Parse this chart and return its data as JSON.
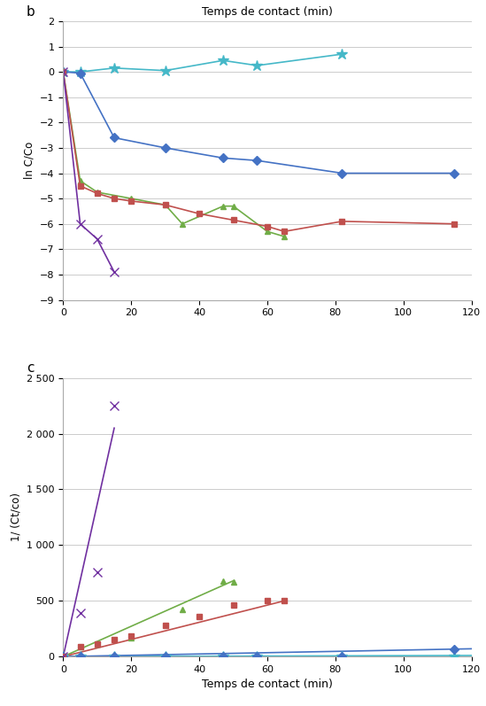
{
  "panel_b": {
    "title": "Temps de contact (min)",
    "ylabel": "ln C/Co",
    "label": "b",
    "xlim": [
      0,
      120
    ],
    "ylim": [
      -9,
      2
    ],
    "yticks": [
      -9,
      -8,
      -7,
      -6,
      -5,
      -4,
      -3,
      -2,
      -1,
      0,
      1,
      2
    ],
    "xticks": [
      0,
      20,
      40,
      60,
      80,
      100,
      120
    ],
    "series": [
      {
        "x": [
          0,
          5,
          15,
          30,
          47,
          57,
          82
        ],
        "y": [
          0,
          0.0,
          0.15,
          0.05,
          0.45,
          0.25,
          0.7
        ],
        "color": "#45B8C8",
        "marker": "*",
        "markersize": 9,
        "linewidth": 1.2,
        "linestyle": "-"
      },
      {
        "x": [
          0,
          5,
          15,
          30,
          47,
          57,
          82,
          115
        ],
        "y": [
          0,
          -0.05,
          -2.6,
          -3.0,
          -3.4,
          -3.5,
          -4.0,
          -4.0
        ],
        "color": "#4472C4",
        "marker": "D",
        "markersize": 5,
        "linewidth": 1.2,
        "linestyle": "-"
      },
      {
        "x": [
          0,
          5,
          10,
          20,
          30,
          35,
          47,
          50,
          60,
          65
        ],
        "y": [
          0,
          -4.3,
          -4.75,
          -5.0,
          -5.25,
          -6.0,
          -5.3,
          -5.3,
          -6.3,
          -6.5
        ],
        "color": "#70AD47",
        "marker": "^",
        "markersize": 5,
        "linewidth": 1.2,
        "linestyle": "-"
      },
      {
        "x": [
          0,
          5,
          10,
          15,
          20,
          30,
          40,
          50,
          60,
          65,
          82,
          115
        ],
        "y": [
          0,
          -4.5,
          -4.8,
          -5.0,
          -5.1,
          -5.25,
          -5.6,
          -5.85,
          -6.1,
          -6.3,
          -5.9,
          -6.0
        ],
        "color": "#C0504D",
        "marker": "s",
        "markersize": 5,
        "linewidth": 1.2,
        "linestyle": "-"
      },
      {
        "x": [
          0,
          5,
          10,
          15
        ],
        "y": [
          0,
          -6.0,
          -6.6,
          -7.9
        ],
        "color": "#7030A0",
        "marker": "x",
        "markersize": 7,
        "linewidth": 1.2,
        "linestyle": "-"
      }
    ]
  },
  "panel_c": {
    "xlabel": "Temps de contact (min)",
    "ylabel": "1/ (Ct/co)",
    "label": "c",
    "xlim": [
      0,
      120
    ],
    "ylim": [
      0,
      2500
    ],
    "yticks": [
      0,
      500,
      1000,
      1500,
      2000,
      2500
    ],
    "xticks": [
      0,
      20,
      40,
      60,
      80,
      100,
      120
    ],
    "series": [
      {
        "x_data": [
          0,
          5,
          15,
          30,
          47,
          57,
          82,
          115
        ],
        "y_data": [
          1,
          1,
          2,
          2,
          2,
          2,
          5,
          2
        ],
        "color": "#45B8C8",
        "marker": "*",
        "markersize": 9,
        "linewidth": 1.2,
        "trend_x": [
          0,
          120
        ],
        "trend_y": [
          0,
          10
        ]
      },
      {
        "x_data": [
          0,
          5,
          15,
          30,
          47,
          57,
          82,
          115
        ],
        "y_data": [
          1,
          1,
          2,
          2,
          2,
          3,
          5,
          65
        ],
        "color": "#4472C4",
        "marker": "D",
        "markersize": 5,
        "linewidth": 1.2,
        "trend_x": [
          0,
          120
        ],
        "trend_y": [
          0,
          70
        ]
      },
      {
        "x_data": [
          0,
          5,
          10,
          20,
          35,
          47,
          50
        ],
        "y_data": [
          1,
          90,
          115,
          170,
          420,
          680,
          670
        ],
        "color": "#70AD47",
        "marker": "^",
        "markersize": 5,
        "linewidth": 1.2,
        "trend_x": [
          0,
          50
        ],
        "trend_y": [
          0,
          680
        ]
      },
      {
        "x_data": [
          0,
          5,
          10,
          15,
          20,
          30,
          40,
          50,
          60,
          65
        ],
        "y_data": [
          1,
          90,
          115,
          155,
          185,
          280,
          360,
          460,
          500,
          500
        ],
        "color": "#C0504D",
        "marker": "s",
        "markersize": 5,
        "linewidth": 1.2,
        "trend_x": [
          0,
          65
        ],
        "trend_y": [
          0,
          500
        ]
      },
      {
        "x_data": [
          0,
          5,
          10,
          15
        ],
        "y_data": [
          1,
          390,
          760,
          2250
        ],
        "color": "#7030A0",
        "marker": "x",
        "markersize": 7,
        "linewidth": 1.2,
        "trend_x": [
          0,
          15
        ],
        "trend_y": [
          0,
          2050
        ]
      }
    ]
  }
}
